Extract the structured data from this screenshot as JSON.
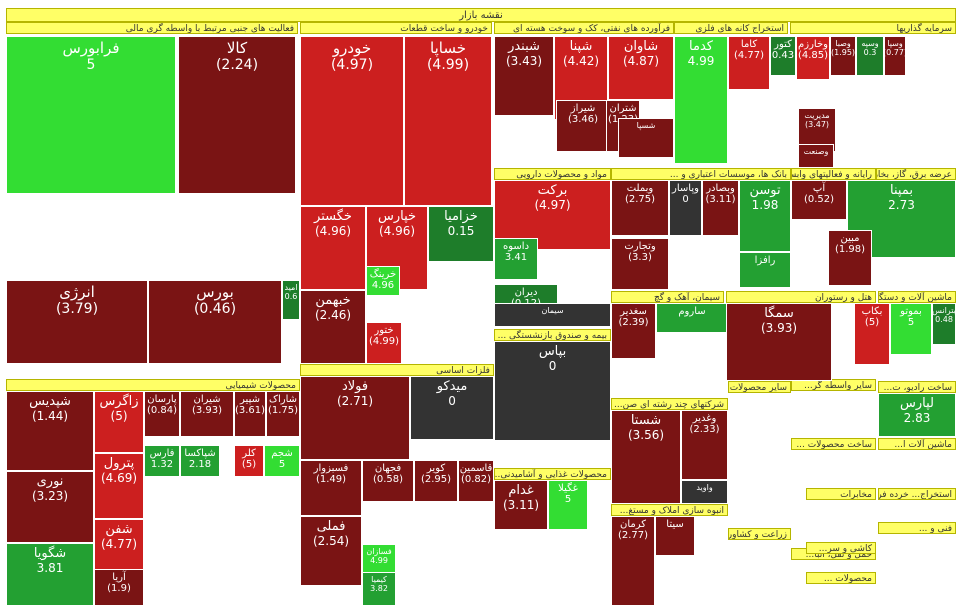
{
  "title": "نقشه بازار",
  "colors": {
    "dark_red": "#7a1414",
    "red": "#cc1f1f",
    "bright_red": "#e8312f",
    "dark_green": "#1e7d2a",
    "green": "#23a032",
    "bright_green": "#33dd33",
    "neutral": "#333333",
    "header": "#ffff66"
  },
  "chart_data": {
    "type": "treemap",
    "value_meaning": "daily price change (%)",
    "sectors": [
      {
        "name": "فعالیت های جنبی مرتبط با واسطه گری مالی"
      },
      {
        "name": "خودرو و ساخت قطعات"
      },
      {
        "name": "فرآورده های نفتی، کک و سوخت هسته ای"
      },
      {
        "name": "استخراج کانه های فلزی"
      },
      {
        "name": "سرمایه گذاریها"
      },
      {
        "name": "عرضه برق، گاز، بخار و ..."
      },
      {
        "name": "رایانه و فعالیتهای وابسته به آن"
      },
      {
        "name": "بانک ها، موسسات اعتباری و ..."
      },
      {
        "name": "مواد و محصولات دارویی"
      },
      {
        "name": "سیمان، آهک و گچ"
      },
      {
        "name": "هتل و رستوران"
      },
      {
        "name": "ماشین آلات و دستگاه ها..."
      },
      {
        "name": "بیمه و صندوق بازنشستگی ..."
      },
      {
        "name": "محصولات شیمیایی"
      },
      {
        "name": "فلزات اساسی"
      },
      {
        "name": "شرکتهای چند رشته ای صن..."
      },
      {
        "name": "سایر واسطه گر..."
      },
      {
        "name": "سایر محصولات..."
      },
      {
        "name": "ساخت رادیو، ت..."
      },
      {
        "name": "ساخت محصولات ..."
      },
      {
        "name": "ماشین آلات ا..."
      },
      {
        "name": "محصولات غذایی و آشامیدنی..."
      },
      {
        "name": "انبوه سازی املاک و مستغ..."
      },
      {
        "name": "زراعت و کشاورزی..."
      },
      {
        "name": "حمل و نقل، انبا..."
      },
      {
        "name": "کاشی و سر..."
      },
      {
        "name": "مخابرات"
      },
      {
        "name": "استخراج... خرده فر..."
      },
      {
        "name": "فنی و ..."
      },
      {
        "name": "محصولات ..."
      }
    ],
    "tiles": [
      {
        "name": "فرابورس",
        "value": "5",
        "change": 5
      },
      {
        "name": "کالا",
        "value": "(2.24)",
        "change": -2.24
      },
      {
        "name": "انرژی",
        "value": "(3.79)",
        "change": -3.79
      },
      {
        "name": "بورس",
        "value": "(0.46)",
        "change": -0.46
      },
      {
        "name": "امید",
        "value": "0.6",
        "change": 0.6
      },
      {
        "name": "خودرو",
        "value": "(4.97)",
        "change": -4.97
      },
      {
        "name": "خساپا",
        "value": "(4.99)",
        "change": -4.99
      },
      {
        "name": "خگستر",
        "value": "(4.96)",
        "change": -4.96
      },
      {
        "name": "خپارس",
        "value": "(4.96)",
        "change": -4.96
      },
      {
        "name": "خزامیا",
        "value": "0.15",
        "change": 0.15
      },
      {
        "name": "خبهمن",
        "value": "(2.46)",
        "change": -2.46
      },
      {
        "name": "ختور",
        "value": "(4.99)",
        "change": -4.99
      },
      {
        "name": "خرینگ",
        "value": "4.96",
        "change": 4.96
      },
      {
        "name": "شبندر",
        "value": "(3.43)",
        "change": -3.43
      },
      {
        "name": "شپنا",
        "value": "(4.42)",
        "change": -4.42
      },
      {
        "name": "شاوان",
        "value": "(4.87)",
        "change": -4.87
      },
      {
        "name": "شیراز",
        "value": "(3.46)",
        "change": -3.46
      },
      {
        "name": "شتران",
        "value": "(1.23)",
        "change": -1.23
      },
      {
        "name": "شسپا",
        "value": "",
        "change": -1
      },
      {
        "name": "کدما",
        "value": "4.99",
        "change": 4.99
      },
      {
        "name": "کاما",
        "value": "(4.77)",
        "change": -4.77
      },
      {
        "name": "کتور",
        "value": "0.43",
        "change": 0.43
      },
      {
        "name": "وخارزم",
        "value": "(4.85)",
        "change": -4.85
      },
      {
        "name": "وصبا",
        "value": "(1.95)",
        "change": -1.95
      },
      {
        "name": "وسپه",
        "value": "0.3",
        "change": 0.3
      },
      {
        "name": "وسپا",
        "value": "(0.77)",
        "change": -0.77
      },
      {
        "name": "مدیریت",
        "value": "(3.47)",
        "change": -3.47
      },
      {
        "name": "وصنعت",
        "value": "",
        "change": -1
      },
      {
        "name": "برکت",
        "value": "(4.97)",
        "change": -4.97
      },
      {
        "name": "داسوه",
        "value": "3.41",
        "change": 3.41
      },
      {
        "name": "دیران",
        "value": "(0.12)",
        "change": -0.12
      },
      {
        "name": "وبملت",
        "value": "(2.75)",
        "change": -2.75
      },
      {
        "name": "وپاسار",
        "value": "0",
        "change": 0
      },
      {
        "name": "وبصادر",
        "value": "(3.11)",
        "change": -3.11
      },
      {
        "name": "وتجارت",
        "value": "(3.3)",
        "change": -3.3
      },
      {
        "name": "توسن",
        "value": "1.98",
        "change": 1.98
      },
      {
        "name": "آپ",
        "value": "(0.52)",
        "change": -0.52
      },
      {
        "name": "رافزا",
        "value": "",
        "change": 2
      },
      {
        "name": "بمپنا",
        "value": "2.73",
        "change": 2.73
      },
      {
        "name": "مبین",
        "value": "(1.98)",
        "change": -1.98
      },
      {
        "name": "سیمان",
        "value": "",
        "change": 0
      },
      {
        "name": "ساروم",
        "value": "",
        "change": 2
      },
      {
        "name": "سغدیر",
        "value": "(2.39)",
        "change": -2.39
      },
      {
        "name": "بپاس",
        "value": "0",
        "change": 0
      },
      {
        "name": "سمگا",
        "value": "(3.93)",
        "change": -3.93
      },
      {
        "name": "بکاب",
        "value": "(5)",
        "change": -5
      },
      {
        "name": "بموتو",
        "value": "5",
        "change": 5
      },
      {
        "name": "بترانس",
        "value": "0.48",
        "change": 0.48
      },
      {
        "name": "شپدیس",
        "value": "(1.44)",
        "change": -1.44
      },
      {
        "name": "زاگرس",
        "value": "(5)",
        "change": -5
      },
      {
        "name": "پارسان",
        "value": "(0.84)",
        "change": -0.84
      },
      {
        "name": "شیران",
        "value": "(3.93)",
        "change": -3.93
      },
      {
        "name": "شپیر",
        "value": "(3.61)",
        "change": -3.61
      },
      {
        "name": "شاراک",
        "value": "(1.75)",
        "change": -1.75
      },
      {
        "name": "پترول",
        "value": "(4.69)",
        "change": -4.69
      },
      {
        "name": "فارس",
        "value": "1.32",
        "change": 1.32
      },
      {
        "name": "شپاکسا",
        "value": "2.18",
        "change": 2.18
      },
      {
        "name": "کلر",
        "value": "(5)",
        "change": -5
      },
      {
        "name": "شجم",
        "value": "5",
        "change": 5
      },
      {
        "name": "نوری",
        "value": "(3.23)",
        "change": -3.23
      },
      {
        "name": "شفن",
        "value": "(4.77)",
        "change": -4.77
      },
      {
        "name": "شگویا",
        "value": "3.81",
        "change": 3.81
      },
      {
        "name": "آریا",
        "value": "(1.9)",
        "change": -1.9
      },
      {
        "name": "فولاد",
        "value": "(2.71)",
        "change": -2.71
      },
      {
        "name": "میدکو",
        "value": "0",
        "change": 0
      },
      {
        "name": "فسبزوار",
        "value": "(1.49)",
        "change": -1.49
      },
      {
        "name": "فجهان",
        "value": "(0.58)",
        "change": -0.58
      },
      {
        "name": "کویر",
        "value": "(2.95)",
        "change": -2.95
      },
      {
        "name": "قاسمین",
        "value": "(0.82)",
        "change": -0.82
      },
      {
        "name": "فملی",
        "value": "(2.54)",
        "change": -2.54
      },
      {
        "name": "فسازان",
        "value": "4.99",
        "change": 4.99
      },
      {
        "name": "کیمیا",
        "value": "3.82",
        "change": 3.82
      },
      {
        "name": "شستا",
        "value": "(3.56)",
        "change": -3.56
      },
      {
        "name": "وغدیر",
        "value": "(2.33)",
        "change": -2.33
      },
      {
        "name": "واوید",
        "value": "",
        "change": 0
      },
      {
        "name": "غدام",
        "value": "(3.11)",
        "change": -3.11
      },
      {
        "name": "غگیلا",
        "value": "5",
        "change": 5
      },
      {
        "name": "لپارس",
        "value": "2.83",
        "change": 2.83
      },
      {
        "name": "کرمان",
        "value": "(2.77)",
        "change": -2.77
      },
      {
        "name": "سیتا",
        "value": "",
        "change": -1
      }
    ]
  }
}
